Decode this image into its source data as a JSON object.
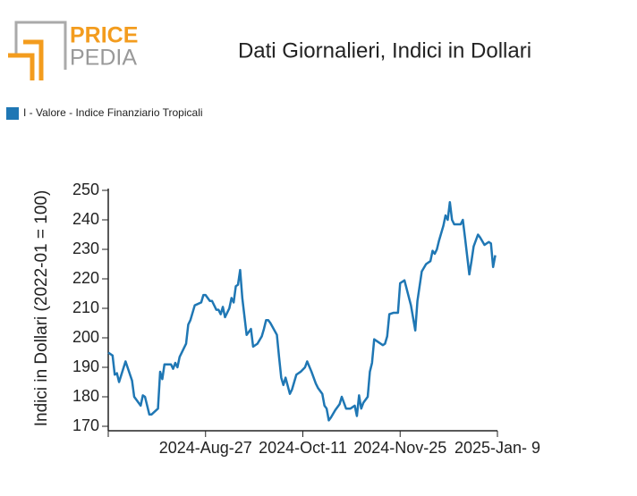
{
  "logo": {
    "top": "PRICE",
    "bottom": "PEDIA"
  },
  "chart_data": {
    "type": "line",
    "title": "Dati Giornalieri, Indici in Dollari",
    "ylabel": "Indici in Dollari (2022-01 = 100)",
    "legend": "top-left",
    "xlim": [
      "2024-07-13",
      "2025-01-09"
    ],
    "xticks": [
      {
        "value": "2024-08-27",
        "label": "2024-Aug-27"
      },
      {
        "value": "2024-10-11",
        "label": "2024-Oct-11"
      },
      {
        "value": "2024-11-25",
        "label": "2024-Nov-25"
      },
      {
        "value": "2025-01-09",
        "label": "2025-Jan- 9"
      }
    ],
    "ylim": [
      170,
      250
    ],
    "yticks": [
      170,
      180,
      190,
      200,
      210,
      220,
      230,
      240,
      250
    ],
    "x": [
      "2024-07-13",
      "2024-07-15",
      "2024-07-16",
      "2024-07-17",
      "2024-07-18",
      "2024-07-21",
      "2024-07-24",
      "2024-07-25",
      "2024-07-28",
      "2024-07-29",
      "2024-07-30",
      "2024-08-01",
      "2024-08-02",
      "2024-08-05",
      "2024-08-06",
      "2024-08-07",
      "2024-08-08",
      "2024-08-11",
      "2024-08-12",
      "2024-08-13",
      "2024-08-14",
      "2024-08-15",
      "2024-08-18",
      "2024-08-19",
      "2024-08-20",
      "2024-08-22",
      "2024-08-25",
      "2024-08-26",
      "2024-08-27",
      "2024-08-29",
      "2024-08-30",
      "2024-09-01",
      "2024-09-02",
      "2024-09-03",
      "2024-09-04",
      "2024-09-05",
      "2024-09-07",
      "2024-09-08",
      "2024-09-09",
      "2024-09-10",
      "2024-09-11",
      "2024-09-12",
      "2024-09-13",
      "2024-09-15",
      "2024-09-17",
      "2024-09-18",
      "2024-09-20",
      "2024-09-22",
      "2024-09-23",
      "2024-09-24",
      "2024-09-25",
      "2024-09-26",
      "2024-09-29",
      "2024-09-30",
      "2024-10-01",
      "2024-10-02",
      "2024-10-03",
      "2024-10-05",
      "2024-10-06",
      "2024-10-08",
      "2024-10-10",
      "2024-10-12",
      "2024-10-13",
      "2024-10-15",
      "2024-10-17",
      "2024-10-18",
      "2024-10-20",
      "2024-10-21",
      "2024-10-22",
      "2024-10-23",
      "2024-10-24",
      "2024-10-26",
      "2024-10-28",
      "2024-10-29",
      "2024-10-31",
      "2024-11-02",
      "2024-11-04",
      "2024-11-05",
      "2024-11-06",
      "2024-11-07",
      "2024-11-08",
      "2024-11-10",
      "2024-11-11",
      "2024-11-12",
      "2024-11-13",
      "2024-11-15",
      "2024-11-17",
      "2024-11-18",
      "2024-11-19",
      "2024-11-20",
      "2024-11-22",
      "2024-11-24",
      "2024-11-25",
      "2024-11-27",
      "2024-11-30",
      "2024-12-02",
      "2024-12-03",
      "2024-12-05",
      "2024-12-07",
      "2024-12-09",
      "2024-12-10",
      "2024-12-11",
      "2024-12-12",
      "2024-12-13",
      "2024-12-15",
      "2024-12-16",
      "2024-12-17",
      "2024-12-18",
      "2024-12-19",
      "2024-12-20",
      "2024-12-23",
      "2024-12-24",
      "2024-12-25",
      "2024-12-27",
      "2024-12-28",
      "2024-12-29",
      "2024-12-31",
      "2025-01-01",
      "2025-01-03",
      "2025-01-05",
      "2025-01-06",
      "2025-01-07",
      "2025-01-08"
    ],
    "series": [
      {
        "name": "I - Valore - Indice Finanziario Tropicali",
        "color": "#1f77b4",
        "values": [
          195,
          194,
          187.5,
          188,
          185,
          192,
          185.5,
          180,
          177,
          180.5,
          180,
          174,
          174,
          176,
          188.5,
          186,
          191,
          191,
          189.5,
          191.5,
          190,
          193.5,
          198,
          204.5,
          206,
          211,
          212,
          214.5,
          214.5,
          212.5,
          212.5,
          209.5,
          209.5,
          208,
          210.5,
          207,
          210,
          213.5,
          212,
          217.5,
          218,
          223,
          213.5,
          201,
          203,
          197,
          198,
          200.5,
          203,
          206,
          206,
          205,
          201,
          193.5,
          186.5,
          184,
          186.5,
          181,
          182.5,
          187.5,
          188.5,
          190,
          192,
          188.5,
          184.5,
          183,
          181,
          177,
          176,
          172,
          173,
          175.5,
          177.5,
          180,
          176,
          176,
          177,
          173.5,
          180.5,
          176,
          178,
          180,
          188.5,
          191.5,
          199.5,
          198.5,
          197.5,
          198,
          200.5,
          208,
          208.5,
          208.5,
          218.5,
          219.5,
          211,
          202.5,
          212.5,
          222.5,
          225,
          226,
          229.5,
          228.5,
          230,
          233,
          238,
          241.5,
          240,
          246,
          240,
          238.5,
          238.5,
          240,
          234,
          221.5,
          226,
          231,
          235,
          234,
          231.5,
          232.5,
          232,
          224,
          228
        ]
      }
    ]
  }
}
